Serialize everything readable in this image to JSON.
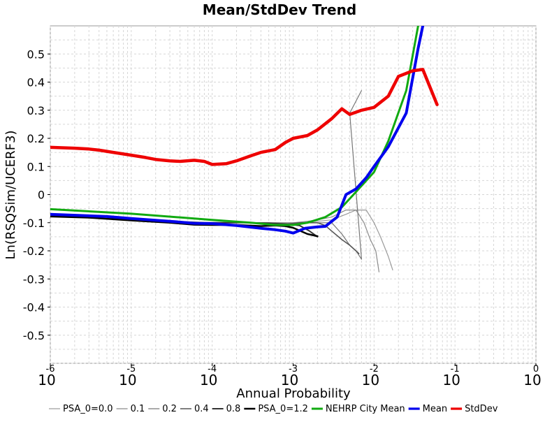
{
  "chart_data": {
    "type": "line",
    "title": "Mean/StdDev Trend",
    "xlabel": "Annual Probability",
    "ylabel": "Ln(RSQSim/UCERF3)",
    "xscale": "log",
    "xlim": [
      1e-06,
      1
    ],
    "ylim": [
      -0.6,
      0.6
    ],
    "grid": true,
    "legend_position": "bottom",
    "y_ticks": [
      {
        "value": 0.5,
        "label": "0.5"
      },
      {
        "value": 0.4,
        "label": "0.4"
      },
      {
        "value": 0.3,
        "label": "0.3"
      },
      {
        "value": 0.2,
        "label": "0.2"
      },
      {
        "value": 0.1,
        "label": "0.1"
      },
      {
        "value": 0.0,
        "label": "0"
      },
      {
        "value": -0.1,
        "label": "-0.1"
      },
      {
        "value": -0.2,
        "label": "-0.2"
      },
      {
        "value": -0.3,
        "label": "-0.3"
      },
      {
        "value": -0.4,
        "label": "-0.4"
      },
      {
        "value": -0.5,
        "label": "-0.5"
      }
    ],
    "x_ticks": [
      {
        "value": 1e-06,
        "base": "10",
        "exp": "-6"
      },
      {
        "value": 1e-05,
        "base": "10",
        "exp": "-5"
      },
      {
        "value": 0.0001,
        "base": "10",
        "exp": "-4"
      },
      {
        "value": 0.001,
        "base": "10",
        "exp": "-3"
      },
      {
        "value": 0.01,
        "base": "10",
        "exp": "-2"
      },
      {
        "value": 0.1,
        "base": "10",
        "exp": "-1"
      },
      {
        "value": 1,
        "base": "10",
        "exp": "0"
      }
    ],
    "series": [
      {
        "name": "PSA_0=0.0",
        "color": "#9a9a9a",
        "width": 1.2,
        "points": [
          [
            0.00052,
            -0.1
          ],
          [
            0.0007,
            -0.1
          ],
          [
            0.001,
            -0.1
          ],
          [
            0.0015,
            -0.098
          ],
          [
            0.002,
            -0.095
          ],
          [
            0.003,
            -0.09
          ],
          [
            0.0045,
            -0.07
          ],
          [
            0.006,
            -0.055
          ],
          [
            0.007,
            -0.055
          ],
          [
            0.008,
            -0.055
          ],
          [
            0.01,
            -0.1
          ],
          [
            0.012,
            -0.15
          ],
          [
            0.015,
            -0.22
          ],
          [
            0.017,
            -0.268
          ]
        ]
      },
      {
        "name": "0.1",
        "color": "#8a8a8a",
        "width": 1.2,
        "points": [
          [
            0.0006,
            -0.1
          ],
          [
            0.001,
            -0.1
          ],
          [
            0.0015,
            -0.095
          ],
          [
            0.002,
            -0.09
          ],
          [
            0.003,
            -0.08
          ],
          [
            0.0045,
            -0.055
          ],
          [
            0.006,
            -0.055
          ],
          [
            0.0075,
            -0.1
          ],
          [
            0.009,
            -0.16
          ],
          [
            0.0105,
            -0.2
          ],
          [
            0.0115,
            -0.275
          ]
        ]
      },
      {
        "name": "0.2",
        "color": "#777777",
        "width": 1.2,
        "points": [
          [
            0.0004,
            -0.1
          ],
          [
            0.0006,
            -0.1
          ],
          [
            0.001,
            -0.105
          ],
          [
            0.0015,
            -0.1
          ],
          [
            0.002,
            -0.1
          ],
          [
            0.003,
            -0.1
          ],
          [
            0.004,
            -0.14
          ],
          [
            0.005,
            -0.18
          ],
          [
            0.006,
            -0.2
          ],
          [
            0.007,
            -0.23
          ],
          [
            0.005,
            0.29
          ],
          [
            0.007,
            0.37
          ]
        ]
      },
      {
        "name": "0.4",
        "color": "#555555",
        "width": 1.6,
        "points": [
          [
            0.0003,
            -0.1
          ],
          [
            0.0005,
            -0.1
          ],
          [
            0.0008,
            -0.105
          ],
          [
            0.0012,
            -0.1
          ],
          [
            0.0015,
            -0.1
          ],
          [
            0.002,
            -0.1
          ],
          [
            0.0025,
            -0.11
          ],
          [
            0.003,
            -0.13
          ],
          [
            0.004,
            -0.16
          ],
          [
            0.005,
            -0.18
          ],
          [
            0.0065,
            -0.21
          ]
        ]
      },
      {
        "name": "0.8",
        "color": "#333333",
        "width": 2,
        "points": [
          [
            1e-06,
            -0.075
          ],
          [
            1e-05,
            -0.09
          ],
          [
            8e-05,
            -0.1
          ],
          [
            0.0002,
            -0.1
          ],
          [
            0.0003,
            -0.1
          ],
          [
            0.0005,
            -0.103
          ],
          [
            0.0008,
            -0.105
          ],
          [
            0.0012,
            -0.11
          ],
          [
            0.0016,
            -0.13
          ],
          [
            0.002,
            -0.15
          ]
        ]
      },
      {
        "name": "PSA_0=1.2",
        "color": "#000000",
        "width": 2.5,
        "points": [
          [
            1e-06,
            -0.078
          ],
          [
            3e-06,
            -0.082
          ],
          [
            1e-05,
            -0.092
          ],
          [
            3e-05,
            -0.1
          ],
          [
            6e-05,
            -0.107
          ],
          [
            0.0001,
            -0.108
          ],
          [
            0.0002,
            -0.108
          ],
          [
            0.0004,
            -0.112
          ],
          [
            0.0006,
            -0.11
          ],
          [
            0.0008,
            -0.112
          ],
          [
            0.001,
            -0.118
          ],
          [
            0.0015,
            -0.14
          ],
          [
            0.002,
            -0.148
          ]
        ]
      },
      {
        "name": "NEHRP City Mean",
        "color": "#11aa11",
        "width": 3,
        "points": [
          [
            1e-06,
            -0.052
          ],
          [
            1e-05,
            -0.068
          ],
          [
            0.0001,
            -0.09
          ],
          [
            0.0003,
            -0.1
          ],
          [
            0.0006,
            -0.108
          ],
          [
            0.001,
            -0.108
          ],
          [
            0.0015,
            -0.1
          ],
          [
            0.0025,
            -0.08
          ],
          [
            0.004,
            -0.045
          ],
          [
            0.006,
            0.01
          ],
          [
            0.01,
            0.08
          ],
          [
            0.015,
            0.19
          ],
          [
            0.025,
            0.37
          ],
          [
            0.035,
            0.6
          ]
        ]
      },
      {
        "name": "Mean",
        "color": "#0000ee",
        "width": 4,
        "points": [
          [
            1e-06,
            -0.07
          ],
          [
            5e-06,
            -0.078
          ],
          [
            1e-05,
            -0.085
          ],
          [
            3e-05,
            -0.095
          ],
          [
            6e-05,
            -0.102
          ],
          [
            0.0001,
            -0.103
          ],
          [
            0.0002,
            -0.11
          ],
          [
            0.0004,
            -0.12
          ],
          [
            0.0006,
            -0.125
          ],
          [
            0.0008,
            -0.13
          ],
          [
            0.001,
            -0.137
          ],
          [
            0.0014,
            -0.12
          ],
          [
            0.002,
            -0.115
          ],
          [
            0.0025,
            -0.113
          ],
          [
            0.0035,
            -0.08
          ],
          [
            0.0045,
            0.0
          ],
          [
            0.006,
            0.02
          ],
          [
            0.008,
            0.06
          ],
          [
            0.01,
            0.1
          ],
          [
            0.015,
            0.17
          ],
          [
            0.025,
            0.29
          ],
          [
            0.035,
            0.52
          ],
          [
            0.04,
            0.6
          ]
        ]
      },
      {
        "name": "StdDev",
        "color": "#ee0000",
        "width": 4.5,
        "points": [
          [
            1e-06,
            0.168
          ],
          [
            2e-06,
            0.165
          ],
          [
            3e-06,
            0.162
          ],
          [
            4e-06,
            0.158
          ],
          [
            6e-06,
            0.15
          ],
          [
            1e-05,
            0.14
          ],
          [
            1.5e-05,
            0.132
          ],
          [
            2e-05,
            0.125
          ],
          [
            3e-05,
            0.12
          ],
          [
            4e-05,
            0.118
          ],
          [
            6e-05,
            0.122
          ],
          [
            8e-05,
            0.118
          ],
          [
            0.0001,
            0.107
          ],
          [
            0.00015,
            0.11
          ],
          [
            0.0002,
            0.12
          ],
          [
            0.0003,
            0.138
          ],
          [
            0.0004,
            0.15
          ],
          [
            0.0006,
            0.16
          ],
          [
            0.0008,
            0.185
          ],
          [
            0.001,
            0.2
          ],
          [
            0.0015,
            0.21
          ],
          [
            0.002,
            0.23
          ],
          [
            0.003,
            0.27
          ],
          [
            0.004,
            0.305
          ],
          [
            0.005,
            0.285
          ],
          [
            0.007,
            0.3
          ],
          [
            0.01,
            0.31
          ],
          [
            0.015,
            0.35
          ],
          [
            0.02,
            0.42
          ],
          [
            0.03,
            0.44
          ],
          [
            0.04,
            0.445
          ],
          [
            0.06,
            0.32
          ]
        ]
      }
    ]
  }
}
